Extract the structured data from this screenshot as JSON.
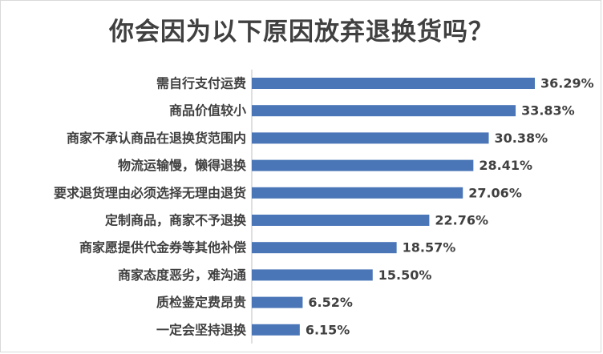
{
  "chart_data": {
    "type": "bar",
    "orientation": "horizontal",
    "title": "你会因为以下原因放弃退换货吗？",
    "categories": [
      "需自行支付运费",
      "商品价值较小",
      "商家不承认商品在退换货范围内",
      "物流运输慢，懒得退换",
      "要求退货理由必须选择无理由退货",
      "定制商品，商家不予退换",
      "商家愿提供代金券等其他补偿",
      "商家态度恶劣，难沟通",
      "质检鉴定费昂贵",
      "一定会坚持退换"
    ],
    "values": [
      36.29,
      33.83,
      30.38,
      28.41,
      27.06,
      22.76,
      18.57,
      15.5,
      6.52,
      6.15
    ],
    "value_labels": [
      "36.29%",
      "33.83%",
      "30.38%",
      "28.41%",
      "27.06%",
      "22.76%",
      "18.57%",
      "15.50%",
      "6.52%",
      "6.15%"
    ],
    "xlim": [
      0,
      40
    ],
    "bar_color": "#4a76b8",
    "grid": false,
    "legend": "none"
  }
}
